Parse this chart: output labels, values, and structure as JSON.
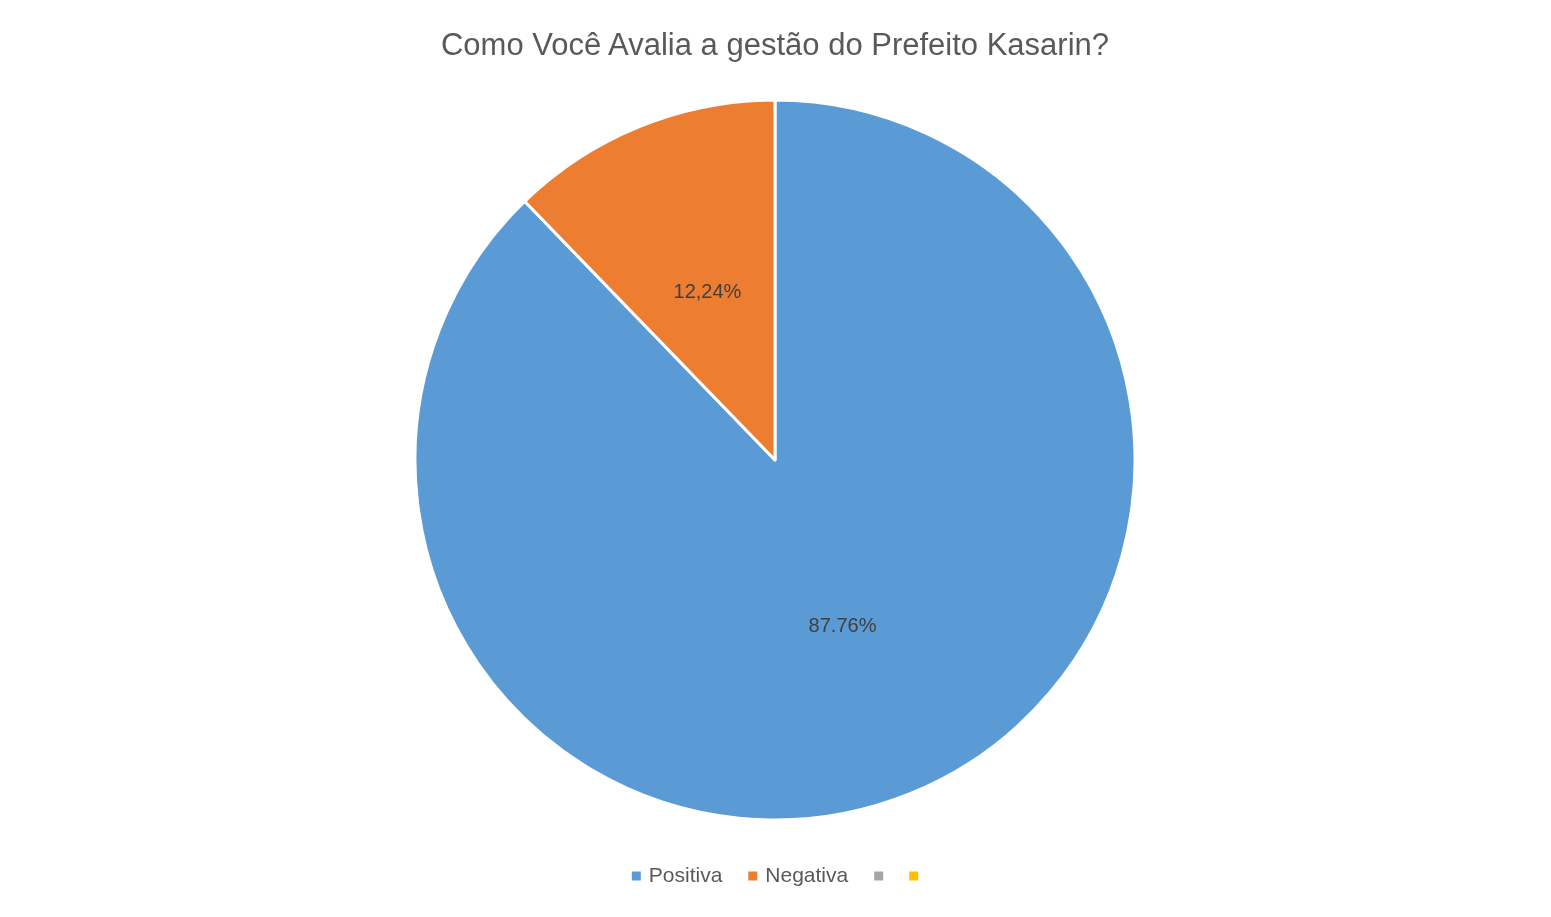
{
  "chart_data": {
    "type": "pie",
    "title": "Como Você Avalia a gestão do Prefeito Kasarin?",
    "categories": [
      "Positiva",
      "Negativa",
      null,
      null
    ],
    "values": [
      87.76,
      12.24,
      0,
      0
    ],
    "colors": [
      "#5b9bd5",
      "#ed7d31",
      "#a5a5a5",
      "#ffc000"
    ],
    "value_labels": [
      "87.76%",
      "12,24%",
      null,
      null
    ],
    "legend": "bottom"
  }
}
